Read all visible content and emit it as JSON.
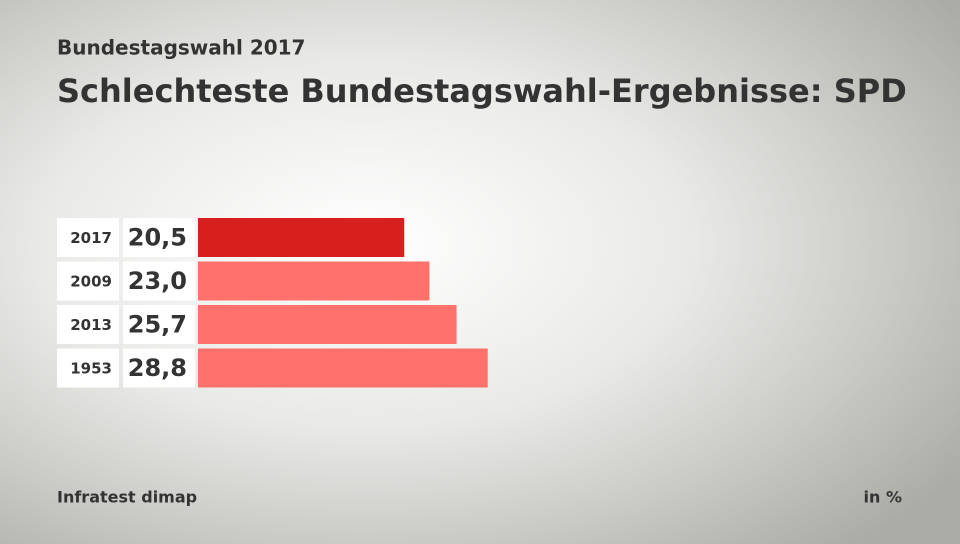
{
  "chart_data": {
    "type": "bar",
    "orientation": "horizontal",
    "subtitle": "Bundestagswahl 2017",
    "title": "Schlechteste Bundestagswahl-Ergebnisse: SPD",
    "categories": [
      "2017",
      "2009",
      "2013",
      "1953"
    ],
    "values": [
      20.5,
      23.0,
      25.7,
      28.8
    ],
    "value_labels": [
      "20,5",
      "23,0",
      "25,7",
      "28,8"
    ],
    "colors": [
      "#d71f1d",
      "#ff716a",
      "#ff716a",
      "#ff716a"
    ],
    "source": "Infratest dimap",
    "unit": "in %"
  }
}
